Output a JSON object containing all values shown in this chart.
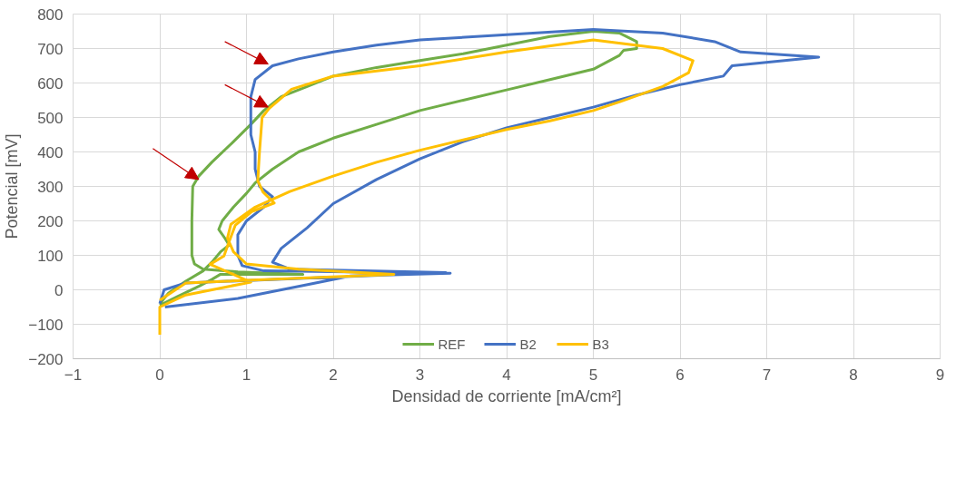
{
  "chart_data": {
    "type": "line",
    "xlabel": "Densidad de corriente [mA/cm²]",
    "ylabel": "Potencial [mV]",
    "xlim": [
      -1,
      9
    ],
    "ylim": [
      -200,
      800
    ],
    "xticks": [
      -1,
      0,
      1,
      2,
      3,
      4,
      5,
      6,
      7,
      8,
      9
    ],
    "yticks": [
      -200,
      -100,
      0,
      100,
      200,
      300,
      400,
      500,
      600,
      700,
      800
    ],
    "grid": true,
    "legend": "bottom",
    "marker": "none",
    "line_style": "solid",
    "series": [
      {
        "name": "REF",
        "color": "#70ad47",
        "x": [
          0,
          0.2,
          0.45,
          0.6,
          0.7,
          1.65,
          0.9,
          0.5,
          0.4,
          0.37,
          0.37,
          0.38,
          0.45,
          0.6,
          0.85,
          1.05,
          1.2,
          1.4,
          1.7,
          2.0,
          2.5,
          3,
          3.5,
          4,
          4.5,
          5,
          5.3,
          5.5,
          5.5,
          5.35,
          5.3,
          5,
          4.5,
          4,
          3.5,
          3,
          2.5,
          2,
          1.6,
          1.3,
          1.1,
          1.0,
          0.85,
          0.72,
          0.68,
          0.75,
          0.8,
          0.7,
          0.6,
          0.5,
          0.3,
          0.1,
          0
        ],
        "values": [
          -45,
          -20,
          10,
          30,
          45,
          45,
          52,
          60,
          75,
          100,
          200,
          300,
          330,
          370,
          430,
          480,
          520,
          560,
          590,
          620,
          645,
          665,
          685,
          710,
          735,
          750,
          745,
          720,
          700,
          695,
          680,
          640,
          610,
          580,
          550,
          520,
          480,
          440,
          400,
          350,
          310,
          280,
          240,
          200,
          175,
          150,
          130,
          110,
          80,
          55,
          25,
          -10,
          -40
        ]
      },
      {
        "name": "B2",
        "color": "#4472c4",
        "x": [
          0.06,
          0.9,
          1.6,
          2.2,
          3.35,
          1.2,
          0.95,
          0.9,
          0.9,
          1.0,
          1.2,
          1.3,
          1.15,
          1.1,
          1.1,
          1.05,
          1.05,
          1.05,
          1.1,
          1.3,
          1.6,
          2,
          2.5,
          3,
          4,
          5,
          5.8,
          6.4,
          6.7,
          7.6,
          6.6,
          6.5,
          6,
          5.5,
          5,
          4.5,
          4,
          3.5,
          3,
          2.5,
          2,
          1.7,
          1.4,
          1.3,
          1.5,
          3.3,
          0.3,
          0.05,
          0
        ],
        "values": [
          -50,
          -25,
          10,
          40,
          48,
          55,
          70,
          100,
          160,
          200,
          240,
          270,
          300,
          350,
          400,
          450,
          500,
          560,
          610,
          650,
          670,
          690,
          710,
          725,
          740,
          755,
          745,
          720,
          690,
          675,
          650,
          620,
          595,
          565,
          530,
          500,
          470,
          430,
          380,
          320,
          250,
          180,
          120,
          80,
          60,
          50,
          20,
          0,
          -40
        ]
      },
      {
        "name": "B3",
        "color": "#ffc000",
        "x": [
          0,
          0,
          0.3,
          0.8,
          1.05,
          0.8,
          0.58,
          0.74,
          0.8,
          0.87,
          1.06,
          1.32,
          1.19,
          1.13,
          1.15,
          1.18,
          1.26,
          1.52,
          2,
          3,
          4,
          5,
          5.8,
          6.15,
          6.1,
          5.8,
          5.3,
          5,
          4.5,
          4,
          3.5,
          3,
          2.5,
          2,
          1.5,
          1.1,
          0.82,
          0.78,
          0.85,
          1.0,
          1.6,
          2.7,
          0.3,
          0
        ],
        "values": [
          -130,
          -50,
          -15,
          10,
          22,
          50,
          74,
          98,
          140,
          187,
          227,
          252,
          284,
          316,
          400,
          500,
          526,
          582,
          620,
          650,
          690,
          725,
          700,
          665,
          630,
          590,
          545,
          520,
          490,
          465,
          435,
          405,
          370,
          330,
          285,
          240,
          190,
          150,
          110,
          75,
          60,
          45,
          20,
          -30
        ]
      }
    ]
  }
}
